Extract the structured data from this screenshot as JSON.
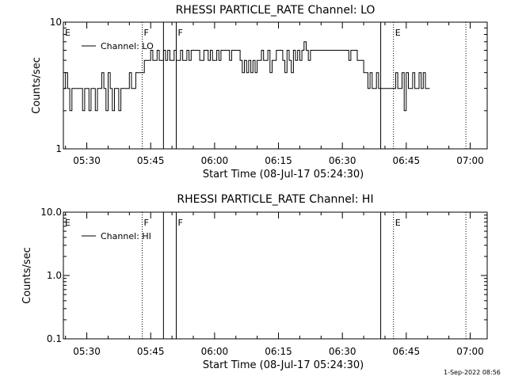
{
  "footer": {
    "date_stamp": "1-Sep-2022 08:56"
  },
  "chart_data": [
    {
      "type": "line",
      "title": "RHESSI PARTICLE_RATE Channel: LO",
      "xlabel": "Start Time (08-Jul-17 05:24:30)",
      "ylabel": "Counts/sec",
      "y_scale": "log",
      "ylim": [
        1,
        10
      ],
      "xlim": [
        "05:24:30",
        "07:04:00"
      ],
      "x_ticks": [
        "05:30",
        "05:45",
        "06:00",
        "06:15",
        "06:30",
        "06:45",
        "07:00"
      ],
      "y_ticks": [
        "1",
        "10"
      ],
      "legend": {
        "label": "Channel: LO",
        "placement": "top-left"
      },
      "flags": [
        {
          "label": "E",
          "time": "05:24:30",
          "line": "none"
        },
        {
          "label": "F",
          "time": "05:43:00",
          "line": "dotted"
        },
        {
          "label": "",
          "time": "05:48:00",
          "line": "solid"
        },
        {
          "label": "F",
          "time": "05:51:00",
          "line": "solid"
        },
        {
          "label": "",
          "time": "06:39:00",
          "line": "solid"
        },
        {
          "label": "E",
          "time": "06:42:00",
          "line": "dotted"
        },
        {
          "label": "",
          "time": "06:59:00",
          "line": "dotted"
        }
      ],
      "series": [
        {
          "name": "Channel: LO",
          "step_minutes": 0.5,
          "start_time": "05:24:30",
          "values": [
            3,
            4,
            3,
            2,
            3,
            3,
            3,
            3,
            3,
            2,
            3,
            3,
            2,
            3,
            3,
            2,
            3,
            3,
            4,
            3,
            2,
            4,
            3,
            2,
            3,
            3,
            2,
            3,
            3,
            3,
            3,
            4,
            3,
            3,
            4,
            4,
            4,
            4,
            5,
            5,
            5,
            6,
            5,
            5,
            6,
            5,
            5,
            6,
            5,
            6,
            5,
            5,
            6,
            5,
            5,
            6,
            5,
            5,
            6,
            5,
            6,
            6,
            6,
            6,
            5,
            5,
            6,
            6,
            5,
            6,
            5,
            5,
            6,
            5,
            6,
            6,
            6,
            6,
            5,
            6,
            6,
            6,
            6,
            5,
            4,
            5,
            4,
            5,
            4,
            5,
            4,
            5,
            5,
            6,
            5,
            5,
            6,
            4,
            5,
            5,
            6,
            6,
            6,
            5,
            4,
            6,
            5,
            4,
            6,
            5,
            6,
            5,
            6,
            7,
            6,
            5,
            6,
            6,
            6,
            6,
            6,
            6,
            6,
            6,
            6,
            6,
            6,
            6,
            6,
            6,
            6,
            6,
            6,
            6,
            5,
            6,
            6,
            6,
            5,
            5,
            5,
            4,
            4,
            3,
            4,
            3,
            3,
            4,
            3,
            3,
            3,
            3,
            3,
            3,
            3,
            3,
            4,
            3,
            3,
            4,
            2,
            4,
            3,
            3,
            4,
            3,
            3,
            4,
            3,
            4,
            3,
            3
          ]
        }
      ]
    },
    {
      "type": "line",
      "title": "RHESSI PARTICLE_RATE Channel: HI",
      "xlabel": "Start Time (08-Jul-17 05:24:30)",
      "ylabel": "Counts/sec",
      "y_scale": "log",
      "ylim": [
        0.1,
        10
      ],
      "xlim": [
        "05:24:30",
        "07:04:00"
      ],
      "x_ticks": [
        "05:30",
        "05:45",
        "06:00",
        "06:15",
        "06:30",
        "06:45",
        "07:00"
      ],
      "y_ticks": [
        "0.1",
        "1.0",
        "10.0"
      ],
      "legend": {
        "label": "Channel: HI",
        "placement": "top-left"
      },
      "flags": [
        {
          "label": "E",
          "time": "05:24:30",
          "line": "none"
        },
        {
          "label": "F",
          "time": "05:43:00",
          "line": "dotted"
        },
        {
          "label": "",
          "time": "05:48:00",
          "line": "solid"
        },
        {
          "label": "F",
          "time": "05:51:00",
          "line": "solid"
        },
        {
          "label": "",
          "time": "06:39:00",
          "line": "solid"
        },
        {
          "label": "E",
          "time": "06:42:00",
          "line": "dotted"
        },
        {
          "label": "",
          "time": "06:59:00",
          "line": "dotted"
        }
      ],
      "series": [
        {
          "name": "Channel: HI",
          "values": []
        }
      ]
    }
  ]
}
